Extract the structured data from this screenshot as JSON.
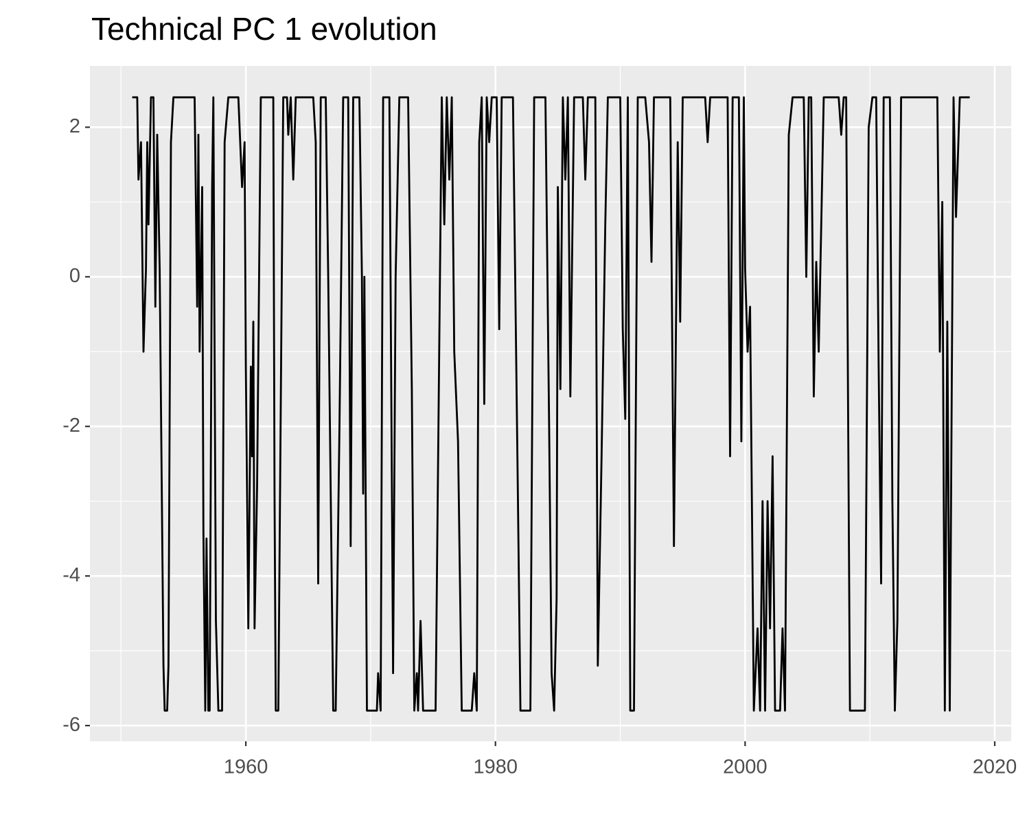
{
  "chart_data": {
    "type": "line",
    "title": "Technical PC 1 evolution",
    "color": "#000000",
    "grid": true,
    "xlim": [
      1947.51,
      2021.32
    ],
    "ylim": [
      -6.21,
      2.82
    ],
    "xticks": [
      1960,
      1980,
      2000,
      2020
    ],
    "yticks": [
      -6,
      -4,
      -2,
      0,
      2
    ],
    "x": [
      1950.9,
      1951.3,
      1951.4,
      1951.6,
      1951.8,
      1952.0,
      1952.1,
      1952.2,
      1952.4,
      1952.6,
      1952.75,
      1952.9,
      1953.1,
      1953.4,
      1953.5,
      1953.7,
      1953.8,
      1954.0,
      1954.2,
      1955.9,
      1956.1,
      1956.2,
      1956.3,
      1956.5,
      1956.6,
      1956.75,
      1956.85,
      1957.0,
      1957.1,
      1957.3,
      1957.4,
      1957.6,
      1957.8,
      1958.1,
      1958.3,
      1958.6,
      1959.4,
      1959.7,
      1959.9,
      1960.0,
      1960.2,
      1960.4,
      1960.5,
      1960.6,
      1960.7,
      1960.9,
      1961.2,
      1962.2,
      1962.3,
      1962.4,
      1962.6,
      1963.0,
      1963.3,
      1963.4,
      1963.6,
      1963.8,
      1964.0,
      1965.4,
      1965.6,
      1965.8,
      1966.0,
      1966.4,
      1966.6,
      1967.0,
      1967.2,
      1967.5,
      1967.8,
      1968.2,
      1968.4,
      1968.6,
      1969.1,
      1969.3,
      1969.4,
      1969.5,
      1969.7,
      1970.5,
      1970.6,
      1970.8,
      1971.0,
      1971.5,
      1971.8,
      1972.0,
      1972.3,
      1973.0,
      1973.3,
      1973.5,
      1973.7,
      1973.8,
      1974.0,
      1974.2,
      1975.2,
      1975.7,
      1975.9,
      1976.1,
      1976.3,
      1976.5,
      1976.7,
      1977.0,
      1977.3,
      1978.1,
      1978.3,
      1978.5,
      1978.7,
      1978.9,
      1979.1,
      1979.3,
      1979.5,
      1979.7,
      1980.1,
      1980.3,
      1980.5,
      1981.4,
      1981.8,
      1982.0,
      1982.8,
      1983.1,
      1984.0,
      1984.3,
      1984.5,
      1984.7,
      1984.9,
      1985.0,
      1985.2,
      1985.4,
      1985.6,
      1985.8,
      1986.0,
      1986.3,
      1987.0,
      1987.2,
      1987.4,
      1988.0,
      1988.2,
      1988.5,
      1988.8,
      1989.0,
      1990.0,
      1990.2,
      1990.4,
      1990.6,
      1990.8,
      1991.1,
      1991.4,
      1992.0,
      1992.3,
      1992.5,
      1992.7,
      1994.0,
      1994.3,
      1994.6,
      1994.8,
      1995.0,
      1996.8,
      1997.0,
      1997.2,
      1998.6,
      1998.8,
      1999.0,
      1999.5,
      1999.7,
      1999.9,
      2000.0,
      2000.2,
      2000.4,
      2000.7,
      2001.0,
      2001.2,
      2001.4,
      2001.6,
      2001.8,
      2002.0,
      2002.2,
      2002.4,
      2002.8,
      2003.0,
      2003.2,
      2003.5,
      2003.8,
      2004.7,
      2004.9,
      2005.1,
      2005.3,
      2005.5,
      2005.7,
      2005.9,
      2006.1,
      2006.3,
      2007.5,
      2007.7,
      2007.9,
      2008.1,
      2008.4,
      2009.6,
      2009.9,
      2010.2,
      2010.5,
      2010.7,
      2010.9,
      2011.1,
      2011.6,
      2011.8,
      2012.0,
      2012.2,
      2012.5,
      2015.4,
      2015.6,
      2015.8,
      2016.0,
      2016.2,
      2016.4,
      2016.7,
      2016.9,
      2017.2,
      2018.0
    ],
    "values": [
      2.4,
      2.4,
      1.3,
      1.8,
      -1.0,
      0.1,
      1.8,
      0.7,
      2.4,
      2.4,
      -0.4,
      1.9,
      0.1,
      -5.2,
      -5.8,
      -5.8,
      -5.2,
      1.8,
      2.4,
      2.4,
      -0.4,
      1.9,
      -1.0,
      1.2,
      -3.4,
      -5.8,
      -3.5,
      -5.8,
      -5.8,
      1.2,
      2.4,
      -4.6,
      -5.8,
      -5.8,
      1.8,
      2.4,
      2.4,
      1.2,
      1.8,
      -1.2,
      -4.7,
      -1.2,
      -2.4,
      -0.6,
      -4.7,
      -2.8,
      2.4,
      2.4,
      -2.9,
      -5.8,
      -5.8,
      2.4,
      2.4,
      1.9,
      2.4,
      1.3,
      2.4,
      2.4,
      1.8,
      -4.1,
      2.4,
      2.4,
      0.0,
      -5.8,
      -5.8,
      -2.0,
      2.4,
      2.4,
      -3.6,
      2.4,
      2.4,
      0.0,
      -2.9,
      0.0,
      -5.8,
      -5.8,
      -5.3,
      -5.8,
      2.4,
      2.4,
      -5.3,
      0.0,
      2.4,
      2.4,
      -1.5,
      -5.8,
      -5.3,
      -5.8,
      -4.6,
      -5.8,
      -5.8,
      2.4,
      0.7,
      2.4,
      1.3,
      2.4,
      -1.0,
      -2.2,
      -5.8,
      -5.8,
      -5.3,
      -5.8,
      1.8,
      2.4,
      -1.7,
      2.4,
      1.8,
      2.4,
      2.4,
      -0.7,
      2.4,
      2.4,
      -3.0,
      -5.8,
      -5.8,
      2.4,
      2.4,
      -2.0,
      -5.3,
      -5.8,
      -4.3,
      1.2,
      -1.5,
      2.4,
      1.3,
      2.4,
      -1.6,
      2.4,
      2.4,
      1.3,
      2.4,
      2.4,
      -5.2,
      -2.4,
      0.7,
      2.4,
      2.4,
      -0.7,
      -1.9,
      2.4,
      -5.8,
      -5.8,
      2.4,
      2.4,
      1.8,
      0.2,
      2.4,
      2.4,
      -3.6,
      1.8,
      -0.6,
      2.4,
      2.4,
      1.8,
      2.4,
      2.4,
      -2.4,
      2.4,
      2.4,
      -2.2,
      2.4,
      0.1,
      -1.0,
      -0.4,
      -5.8,
      -4.7,
      -5.8,
      -3.0,
      -5.8,
      -3.0,
      -4.7,
      -2.4,
      -5.8,
      -5.8,
      -4.7,
      -5.8,
      1.9,
      2.4,
      2.4,
      0.0,
      2.4,
      2.4,
      -1.6,
      0.2,
      -1.0,
      0.7,
      2.4,
      2.4,
      1.9,
      2.4,
      2.4,
      -5.8,
      -5.8,
      2.0,
      2.4,
      2.4,
      -1.2,
      -4.1,
      2.4,
      2.4,
      -3.0,
      -5.8,
      -4.6,
      2.4,
      2.4,
      -1.0,
      1.0,
      -5.8,
      -0.6,
      -5.8,
      2.4,
      0.8,
      2.4,
      2.4
    ]
  }
}
